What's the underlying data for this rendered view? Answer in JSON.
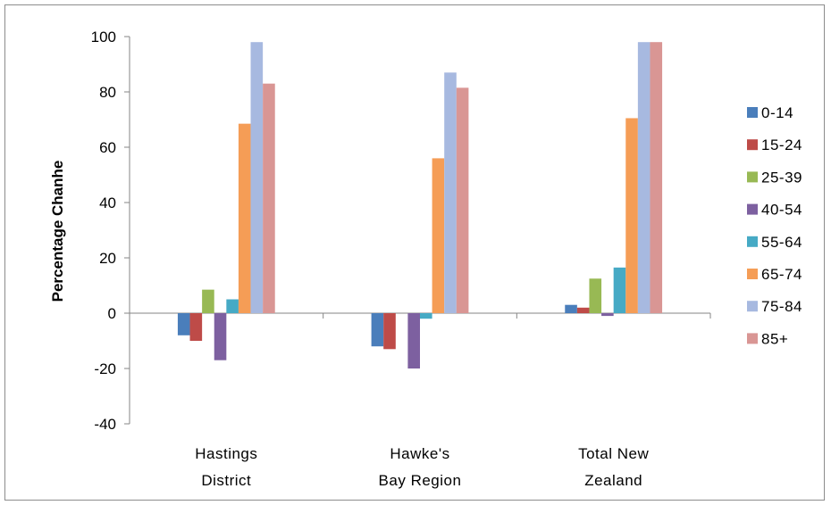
{
  "chart_data": {
    "type": "bar",
    "title": "",
    "xlabel": "",
    "ylabel": "Percentage Chanhe",
    "ylim": [
      -40,
      100
    ],
    "yticks": [
      -40,
      -20,
      0,
      20,
      40,
      60,
      80,
      100
    ],
    "grid": false,
    "legend_position": "right",
    "categories": [
      [
        "Hastings",
        "District"
      ],
      [
        "Hawke's",
        "Bay Region"
      ],
      [
        "Total New",
        "Zealand"
      ]
    ],
    "series": [
      {
        "name": "0-14",
        "color": "#4a7ebb",
        "values": [
          -8,
          -12,
          3
        ]
      },
      {
        "name": "15-24",
        "color": "#be4b48",
        "values": [
          -10,
          -13,
          2
        ]
      },
      {
        "name": "25-39",
        "color": "#98b954",
        "values": [
          8.5,
          0,
          12.5
        ]
      },
      {
        "name": "40-54",
        "color": "#7d60a0",
        "values": [
          -17,
          -20,
          -1
        ]
      },
      {
        "name": "55-64",
        "color": "#46aac5",
        "values": [
          5,
          -2,
          16.5
        ]
      },
      {
        "name": "65-74",
        "color": "#f59d56",
        "values": [
          68.5,
          56,
          70.5
        ]
      },
      {
        "name": "75-84",
        "color": "#a7b9e0",
        "values": [
          98,
          87,
          98
        ]
      },
      {
        "name": "85+",
        "color": "#d99694",
        "values": [
          83,
          81.5,
          98
        ]
      }
    ]
  }
}
